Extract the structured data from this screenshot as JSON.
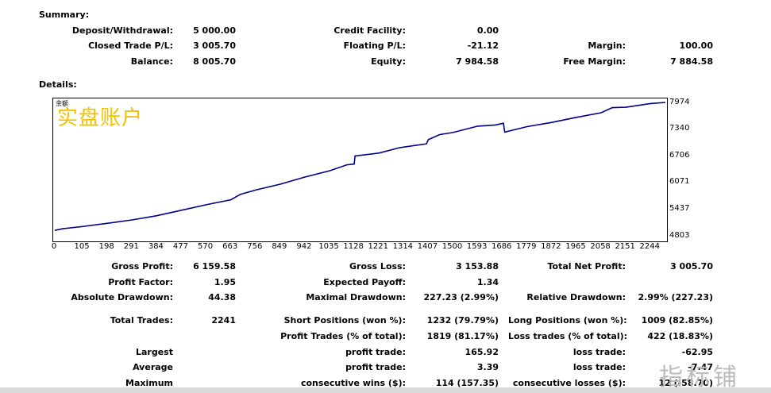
{
  "summary_header": "Summary:",
  "details_header": "Details:",
  "summary": {
    "deposit_label": "Deposit/Withdrawal:",
    "deposit_value": "5 000.00",
    "closed_label": "Closed Trade P/L:",
    "closed_value": "3 005.70",
    "balance_label": "Balance:",
    "balance_value": "8 005.70",
    "credit_label": "Credit Facility:",
    "credit_value": "0.00",
    "floating_label": "Floating P/L:",
    "floating_value": "-21.12",
    "equity_label": "Equity:",
    "equity_value": "7 984.58",
    "margin_label": "Margin:",
    "margin_value": "100.00",
    "free_margin_label": "Free Margin:",
    "free_margin_value": "7 884.58"
  },
  "chart_overlay_title": "实盘账户",
  "chart_small_label": "余额",
  "watermark": "指标铺",
  "chart_data": {
    "type": "line",
    "series": [
      {
        "values": [
          [
            0,
            4960
          ],
          [
            30,
            5000
          ],
          [
            100,
            5050
          ],
          [
            200,
            5130
          ],
          [
            291,
            5210
          ],
          [
            384,
            5310
          ],
          [
            477,
            5440
          ],
          [
            570,
            5570
          ],
          [
            663,
            5690
          ],
          [
            700,
            5820
          ],
          [
            756,
            5920
          ],
          [
            849,
            6060
          ],
          [
            942,
            6230
          ],
          [
            1035,
            6380
          ],
          [
            1100,
            6520
          ],
          [
            1128,
            6540
          ],
          [
            1131,
            6730
          ],
          [
            1221,
            6800
          ],
          [
            1300,
            6930
          ],
          [
            1400,
            7020
          ],
          [
            1407,
            7120
          ],
          [
            1450,
            7240
          ],
          [
            1500,
            7290
          ],
          [
            1593,
            7440
          ],
          [
            1660,
            7470
          ],
          [
            1690,
            7510
          ],
          [
            1695,
            7300
          ],
          [
            1779,
            7430
          ],
          [
            1872,
            7530
          ],
          [
            1965,
            7650
          ],
          [
            2058,
            7760
          ],
          [
            2100,
            7880
          ],
          [
            2151,
            7890
          ],
          [
            2244,
            7980
          ],
          [
            2300,
            8005
          ]
        ]
      }
    ],
    "xlim": [
      0,
      2300
    ],
    "ylim": [
      4700,
      8100
    ],
    "x_ticks": [
      "0",
      "105",
      "198",
      "291",
      "384",
      "477",
      "570",
      "663",
      "756",
      "849",
      "942",
      "1035",
      "1128",
      "1221",
      "1314",
      "1407",
      "1500",
      "1593",
      "1686",
      "1779",
      "1872",
      "1965",
      "2058",
      "2151",
      "2244"
    ],
    "y_ticks": [
      "7974",
      "7340",
      "6706",
      "6071",
      "5437",
      "4803"
    ],
    "line_color": "#00008b"
  },
  "stats": {
    "gross_profit_label": "Gross Profit:",
    "gross_profit_value": "6 159.58",
    "gross_loss_label": "Gross Loss:",
    "gross_loss_value": "3 153.88",
    "total_net_label": "Total Net Profit:",
    "total_net_value": "3 005.70",
    "profit_factor_label": "Profit Factor:",
    "profit_factor_value": "1.95",
    "expected_payoff_label": "Expected Payoff:",
    "expected_payoff_value": "1.34",
    "abs_dd_label": "Absolute Drawdown:",
    "abs_dd_value": "44.38",
    "max_dd_label": "Maximal Drawdown:",
    "max_dd_value": "227.23 (2.99%)",
    "rel_dd_label": "Relative Drawdown:",
    "rel_dd_value": "2.99% (227.23)",
    "total_trades_label": "Total Trades:",
    "total_trades_value": "2241",
    "short_label": "Short Positions (won %):",
    "short_value": "1232 (79.79%)",
    "long_label": "Long Positions (won %):",
    "long_value": "1009 (82.85%)",
    "profit_trades_label": "Profit Trades (% of total):",
    "profit_trades_value": "1819 (81.17%)",
    "loss_trades_label": "Loss trades (% of total):",
    "loss_trades_value": "422 (18.83%)",
    "largest_label": "Largest",
    "largest_profit_label": "profit trade:",
    "largest_profit_value": "165.92",
    "largest_loss_label": "loss trade:",
    "largest_loss_value": "-62.95",
    "average_label": "Average",
    "average_profit_label": "profit trade:",
    "average_profit_value": "3.39",
    "average_loss_label": "loss trade:",
    "average_loss_value": "-7.47",
    "maximum_label": "Maximum",
    "max_wins_label": "consecutive wins ($):",
    "max_wins_value": "114 (157.35)",
    "max_losses_label": "consecutive losses ($):",
    "max_losses_value": "12 (-58.70)"
  }
}
